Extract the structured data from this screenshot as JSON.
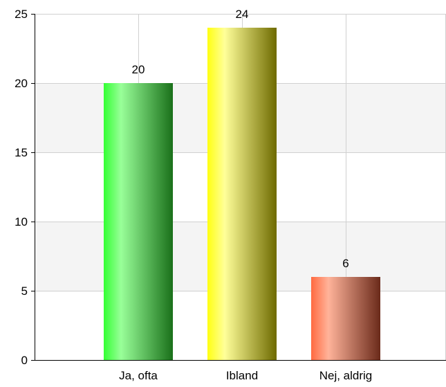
{
  "chart_data": {
    "type": "bar",
    "categories": [
      "Ja, ofta",
      "Ibland",
      "Nej, aldrig"
    ],
    "values": [
      20,
      24,
      6
    ],
    "data_labels": [
      "20",
      "24",
      "6"
    ],
    "title": "",
    "xlabel": "",
    "ylabel": "",
    "ylim": [
      0,
      25
    ],
    "y_ticks": [
      0,
      5,
      10,
      15,
      20,
      25
    ],
    "y_tick_labels": [
      "0",
      "5",
      "10",
      "15",
      "20",
      "25"
    ],
    "grid": true,
    "alternating_bands": true,
    "legend": "none",
    "colors": {
      "bars": [
        {
          "light": "#99ff99",
          "base": "#33ff33",
          "dark": "#1a701a"
        },
        {
          "light": "#ffff99",
          "base": "#ffff11",
          "dark": "#6e6a00"
        },
        {
          "light": "#ffb39a",
          "base": "#ff6a40",
          "dark": "#6a2a1a"
        }
      ],
      "band": "#f4f4f4",
      "grid": "#d0d0d0",
      "axis": "#000000"
    }
  }
}
